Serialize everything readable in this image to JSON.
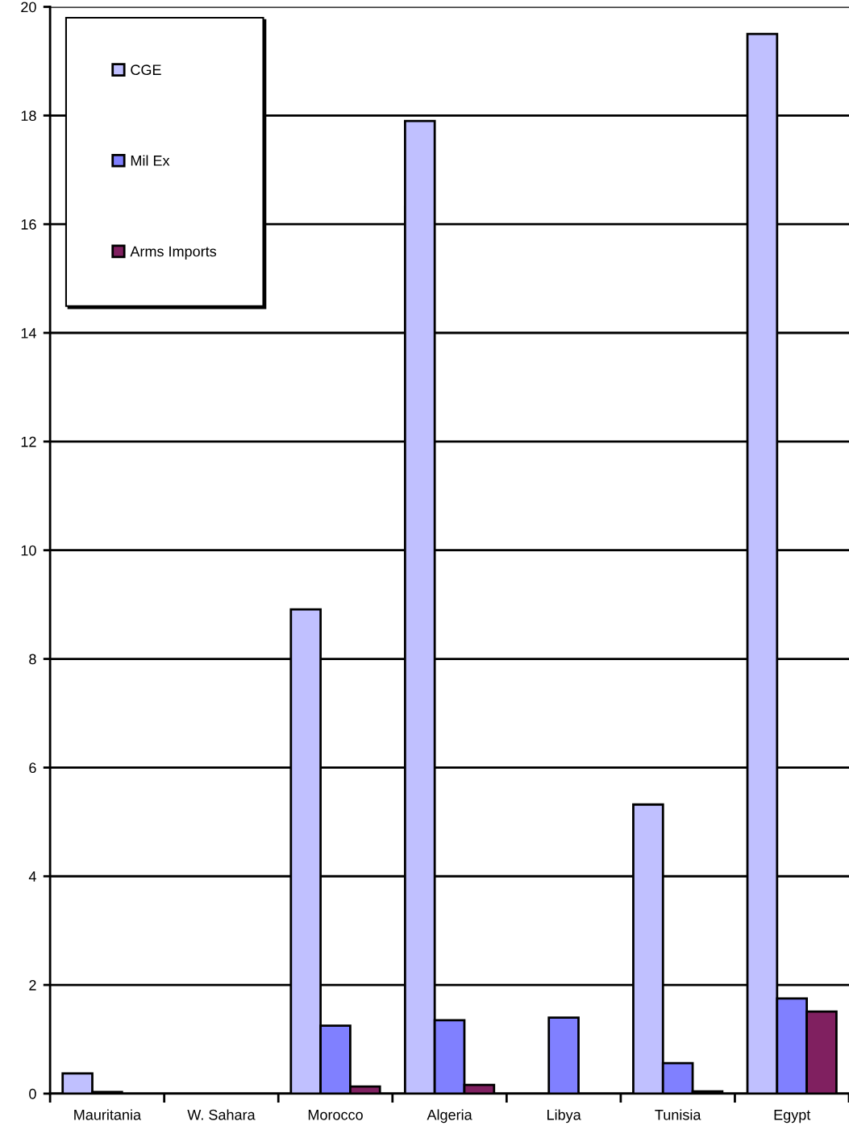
{
  "chart_data": {
    "type": "bar",
    "categories": [
      "Mauritania",
      "W. Sahara",
      "Morocco",
      "Algeria",
      "Libya",
      "Tunisia",
      "Egypt"
    ],
    "series": [
      {
        "name": "CGE",
        "color": "#c0c0ff",
        "values": [
          0.37,
          null,
          8.91,
          17.9,
          null,
          5.32,
          19.5
        ]
      },
      {
        "name": "Mil Ex",
        "color": "#8080ff",
        "values": [
          0.03,
          null,
          1.25,
          1.35,
          1.4,
          0.56,
          1.75
        ]
      },
      {
        "name": "Arms Imports",
        "color": "#802060",
        "values": [
          null,
          null,
          0.13,
          0.16,
          null,
          0.04,
          1.51
        ]
      }
    ],
    "ylim": [
      0,
      20
    ],
    "yticks": [
      0,
      2,
      4,
      6,
      8,
      10,
      12,
      14,
      16,
      18,
      20
    ],
    "grid": "y",
    "legend": "top left"
  }
}
